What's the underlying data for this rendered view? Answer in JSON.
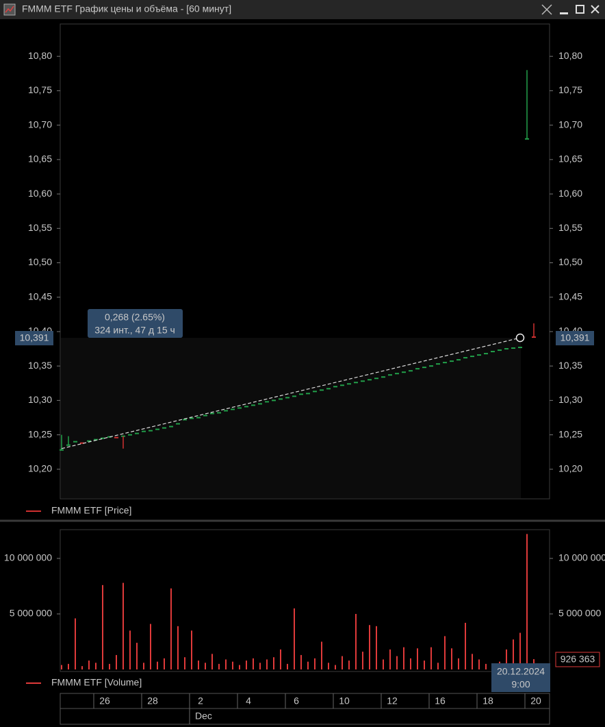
{
  "window": {
    "title": "FMMM ETF График цены и объёма - [60 минут]"
  },
  "chart_data": [
    {
      "type": "price",
      "legend": "FMMM ETF [Price]",
      "color": "#d03030",
      "up_color": "#22a04a",
      "down_color": "#d03030",
      "xlim": [
        -0.2,
        71.3
      ],
      "ylim": [
        10.157,
        10.847
      ],
      "yticks": [
        {
          "value": 10.2,
          "label": "10,20"
        },
        {
          "value": 10.25,
          "label": "10,25"
        },
        {
          "value": 10.3,
          "label": "10,30"
        },
        {
          "value": 10.35,
          "label": "10,35"
        },
        {
          "value": 10.4,
          "label": "10,40"
        },
        {
          "value": 10.45,
          "label": "10,45"
        },
        {
          "value": 10.5,
          "label": "10,50"
        },
        {
          "value": 10.55,
          "label": "10,55"
        },
        {
          "value": 10.6,
          "label": "10,60"
        },
        {
          "value": 10.65,
          "label": "10,65"
        },
        {
          "value": 10.7,
          "label": "10,70"
        },
        {
          "value": 10.75,
          "label": "10,75"
        },
        {
          "value": 10.8,
          "label": "10,80"
        }
      ],
      "values": [
        10.228,
        10.235,
        10.24,
        10.238,
        10.241,
        10.243,
        10.245,
        10.247,
        10.246,
        10.248,
        10.25,
        10.252,
        10.255,
        10.256,
        10.258,
        10.26,
        10.262,
        10.266,
        10.272,
        10.274,
        10.275,
        10.278,
        10.281,
        10.282,
        10.285,
        10.287,
        10.289,
        10.291,
        10.293,
        10.295,
        10.298,
        10.3,
        10.302,
        10.304,
        10.306,
        10.309,
        10.31,
        10.313,
        10.315,
        10.317,
        10.32,
        10.322,
        10.324,
        10.326,
        10.328,
        10.33,
        10.332,
        10.334,
        10.337,
        10.339,
        10.341,
        10.343,
        10.346,
        10.348,
        10.35,
        10.353,
        10.355,
        10.357,
        10.359,
        10.362,
        10.364,
        10.366,
        10.368,
        10.371,
        10.373,
        10.375,
        10.376,
        10.377,
        10.68,
        10.392
      ],
      "high": [
        10.25,
        10.248,
        null,
        null,
        null,
        null,
        null,
        null,
        null,
        null,
        null,
        null,
        null,
        null,
        null,
        null,
        null,
        null,
        null,
        null,
        null,
        null,
        null,
        null,
        null,
        null,
        null,
        null,
        null,
        null,
        null,
        null,
        null,
        null,
        null,
        null,
        null,
        null,
        null,
        null,
        null,
        null,
        null,
        null,
        null,
        null,
        null,
        null,
        null,
        null,
        null,
        null,
        null,
        null,
        null,
        null,
        null,
        null,
        null,
        null,
        null,
        null,
        null,
        null,
        null,
        null,
        null,
        null,
        10.78,
        10.412
      ],
      "low": [
        null,
        null,
        null,
        null,
        null,
        null,
        null,
        null,
        null,
        10.23,
        null,
        null,
        null,
        null,
        null,
        null,
        null,
        null,
        null,
        null,
        null,
        null,
        null,
        null,
        null,
        null,
        null,
        null,
        null,
        null,
        null,
        null,
        null,
        null,
        null,
        null,
        null,
        null,
        null,
        null,
        null,
        null,
        null,
        null,
        null,
        null,
        null,
        null,
        null,
        null,
        null,
        null,
        null,
        null,
        null,
        null,
        null,
        null,
        null,
        null,
        null,
        null,
        null,
        null,
        null,
        null,
        null,
        null,
        null,
        null
      ],
      "last_price": {
        "value": 10.391,
        "label": "10,391"
      },
      "trend": {
        "start_index": 0,
        "start": 10.23,
        "end_index": 67,
        "end": 10.391
      },
      "measure": [
        "0,268 (2.65%)",
        "324 инт., 47 д 15 ч"
      ]
    },
    {
      "type": "bar",
      "legend": "FMMM ETF [Volume]",
      "color": "#e03a3a",
      "xlim": [
        -0.2,
        71.3
      ],
      "ylim": [
        0,
        12590000
      ],
      "yticks": [
        {
          "value": 5000000,
          "label": "5 000 000"
        },
        {
          "value": 10000000,
          "label": "10 000 000"
        }
      ],
      "values": [
        400000,
        500000,
        4600000,
        300000,
        800000,
        600000,
        7600000,
        500000,
        1300000,
        7800000,
        3500000,
        2400000,
        600000,
        4100000,
        700000,
        1000000,
        7300000,
        3900000,
        1100000,
        3500000,
        800000,
        600000,
        1400000,
        500000,
        900000,
        700000,
        400000,
        800000,
        1000000,
        600000,
        900000,
        1100000,
        1800000,
        500000,
        5500000,
        1300000,
        700000,
        1000000,
        2500000,
        600000,
        400000,
        1200000,
        800000,
        5000000,
        1600000,
        4000000,
        3900000,
        900000,
        1800000,
        1200000,
        2000000,
        1000000,
        1900000,
        800000,
        2000000,
        600000,
        3000000,
        1900000,
        1000000,
        4200000,
        1400000,
        900000,
        500000,
        400000,
        700000,
        1800000,
        2700000,
        3300000,
        12200000,
        926363
      ],
      "last_value": {
        "value": 926363,
        "label": "926 363"
      },
      "cursor_label": [
        "20.12.2024",
        "9:00"
      ],
      "xticks": [
        {
          "value": 6,
          "label": "26"
        },
        {
          "value": 13,
          "label": "28"
        },
        {
          "value": 20,
          "label": "2"
        },
        {
          "value": 27,
          "label": "4"
        },
        {
          "value": 34,
          "label": "6"
        },
        {
          "value": 41,
          "label": "10"
        },
        {
          "value": 48,
          "label": "12"
        },
        {
          "value": 55,
          "label": "16"
        },
        {
          "value": 62,
          "label": "18"
        },
        {
          "value": 69,
          "label": "20"
        }
      ],
      "month": "Dec"
    }
  ]
}
